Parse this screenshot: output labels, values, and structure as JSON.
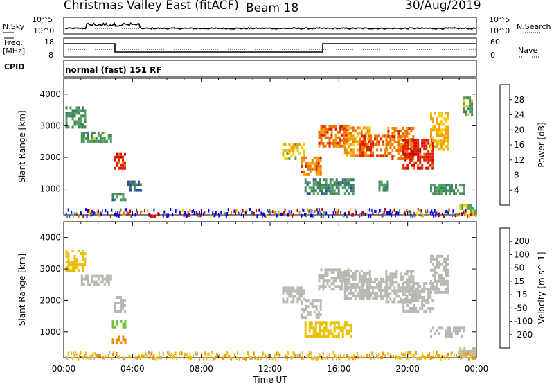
{
  "header": {
    "station": "Christmas Valley East (fitACF)",
    "beam": "Beam 18",
    "date": "30/Aug/2019"
  },
  "summary": {
    "nsky_label": "N.Sky",
    "nsearch_label": "N.Search",
    "noise_ticks": [
      "10^5",
      "10^0"
    ],
    "freq_label_line1": "Freq.",
    "freq_label_line2": "[MHz]",
    "freq_ticks": [
      "18",
      "8"
    ],
    "nave_label": "Nave",
    "nave_ticks": [
      "60",
      "0"
    ],
    "cpid_label": "CPID",
    "cpid_value": "normal (fast) 151 RF"
  },
  "colors": {
    "power_scale": [
      "#0000ff",
      "#2b4aa6",
      "#3f7f62",
      "#4fa35c",
      "#f4d000",
      "#f4a000",
      "#f07000",
      "#e02000",
      "#cc0000"
    ],
    "velocity_scale": [
      "#1a2faa",
      "#2a5fa8",
      "#2f7f3c",
      "#6bc43c",
      "#b8b8b0",
      "#e8c000",
      "#f08c00",
      "#e04000",
      "#e00000"
    ],
    "ground_scatter": "#b8b8b0"
  },
  "chart_data": [
    {
      "type": "heatmap",
      "name": "power",
      "ylabel": "Slant Range [km]",
      "yticks": [
        "1000",
        "2000",
        "3000",
        "4000"
      ],
      "ylim": [
        180,
        4500
      ],
      "xlim_hours": [
        0,
        24
      ],
      "colorbar_label": "Power [dB]",
      "colorbar_ticks": [
        "4",
        "8",
        "12",
        "16",
        "20",
        "24",
        "28"
      ],
      "colorbar_range": [
        0,
        30
      ],
      "regions": [
        {
          "t0": 0.1,
          "t1": 1.3,
          "r0": 3000,
          "r1": 3700,
          "v": 10
        },
        {
          "t0": 1.0,
          "t1": 2.8,
          "r0": 2550,
          "r1": 2900,
          "v": 11
        },
        {
          "t0": 2.9,
          "t1": 3.6,
          "r0": 1700,
          "r1": 2200,
          "v": 24
        },
        {
          "t0": 2.8,
          "t1": 3.6,
          "r0": 700,
          "r1": 900,
          "v": 9
        },
        {
          "t0": 3.7,
          "t1": 4.5,
          "r0": 1000,
          "r1": 1300,
          "v": 7
        },
        {
          "t0": 12.7,
          "t1": 14.0,
          "r0": 2000,
          "r1": 2450,
          "v": 16
        },
        {
          "t0": 13.8,
          "t1": 15.0,
          "r0": 1500,
          "r1": 2100,
          "v": 21
        },
        {
          "t0": 14.8,
          "t1": 16.5,
          "r0": 2400,
          "r1": 3100,
          "v": 22
        },
        {
          "t0": 16.3,
          "t1": 17.8,
          "r0": 2100,
          "r1": 3000,
          "v": 19
        },
        {
          "t0": 17.2,
          "t1": 18.8,
          "r0": 2100,
          "r1": 2800,
          "v": 23
        },
        {
          "t0": 18.7,
          "t1": 20.3,
          "r0": 2000,
          "r1": 3000,
          "v": 21
        },
        {
          "t0": 19.7,
          "t1": 21.4,
          "r0": 1700,
          "r1": 2600,
          "v": 26
        },
        {
          "t0": 21.3,
          "t1": 22.3,
          "r0": 2300,
          "r1": 3500,
          "v": 17
        },
        {
          "t0": 14.0,
          "t1": 16.8,
          "r0": 900,
          "r1": 1400,
          "v": 9
        },
        {
          "t0": 18.3,
          "t1": 18.9,
          "r0": 1000,
          "r1": 1300,
          "v": 10
        },
        {
          "t0": 21.3,
          "t1": 23.3,
          "r0": 900,
          "r1": 1250,
          "v": 10
        },
        {
          "t0": 23.2,
          "t1": 23.7,
          "r0": 3400,
          "r1": 4000,
          "v": 11
        },
        {
          "t0": 23.0,
          "t1": 23.9,
          "r0": 250,
          "r1": 600,
          "v": 13
        }
      ],
      "near_range_clutter": {
        "r0": 180,
        "r1": 400,
        "v": 8
      }
    },
    {
      "type": "heatmap",
      "name": "velocity",
      "ylabel": "Slant Range [km]",
      "yticks": [
        "1000",
        "2000",
        "3000",
        "4000"
      ],
      "ylim": [
        180,
        4500
      ],
      "xlim_hours": [
        0,
        24
      ],
      "xticks": [
        "00:00",
        "04:00",
        "08:00",
        "12:00",
        "16:00",
        "20:00",
        "00:00"
      ],
      "xlabel": "Time UT",
      "colorbar_label": "Velocity [m s^-1]",
      "colorbar_ticks": [
        "200",
        "100",
        "50",
        "15",
        "-15",
        "-50",
        "-100",
        "-200"
      ],
      "regions": [
        {
          "t0": 0.1,
          "t1": 1.3,
          "r0": 3000,
          "r1": 3700,
          "v": -20
        },
        {
          "t0": 1.0,
          "t1": 2.8,
          "r0": 2550,
          "r1": 2900,
          "v": 0
        },
        {
          "t0": 2.9,
          "t1": 3.6,
          "r0": 1700,
          "r1": 2200,
          "v": 0
        },
        {
          "t0": 2.8,
          "t1": 3.6,
          "r0": 1200,
          "r1": 1400,
          "v": 40
        },
        {
          "t0": 2.8,
          "t1": 3.6,
          "r0": 700,
          "r1": 900,
          "v": -60
        },
        {
          "t0": 12.7,
          "t1": 14.0,
          "r0": 2000,
          "r1": 2450,
          "v": 0
        },
        {
          "t0": 13.8,
          "t1": 15.0,
          "r0": 1500,
          "r1": 2100,
          "v": 0
        },
        {
          "t0": 14.8,
          "t1": 16.5,
          "r0": 2400,
          "r1": 3100,
          "v": 0
        },
        {
          "t0": 16.3,
          "t1": 17.8,
          "r0": 2100,
          "r1": 3000,
          "v": 0
        },
        {
          "t0": 17.2,
          "t1": 18.8,
          "r0": 2100,
          "r1": 2800,
          "v": 0
        },
        {
          "t0": 18.7,
          "t1": 20.3,
          "r0": 2000,
          "r1": 3000,
          "v": 0
        },
        {
          "t0": 19.7,
          "t1": 21.4,
          "r0": 1700,
          "r1": 2600,
          "v": 0
        },
        {
          "t0": 21.3,
          "t1": 22.3,
          "r0": 2300,
          "r1": 3500,
          "v": 0
        },
        {
          "t0": 14.0,
          "t1": 16.8,
          "r0": 900,
          "r1": 1400,
          "v": -30
        },
        {
          "t0": 21.3,
          "t1": 23.3,
          "r0": 900,
          "r1": 1250,
          "v": 0
        },
        {
          "t0": 23.0,
          "t1": 23.9,
          "r0": 250,
          "r1": 600,
          "v": 0
        }
      ],
      "near_range_clutter": {
        "r0": 180,
        "r1": 400,
        "v": -40
      }
    }
  ]
}
